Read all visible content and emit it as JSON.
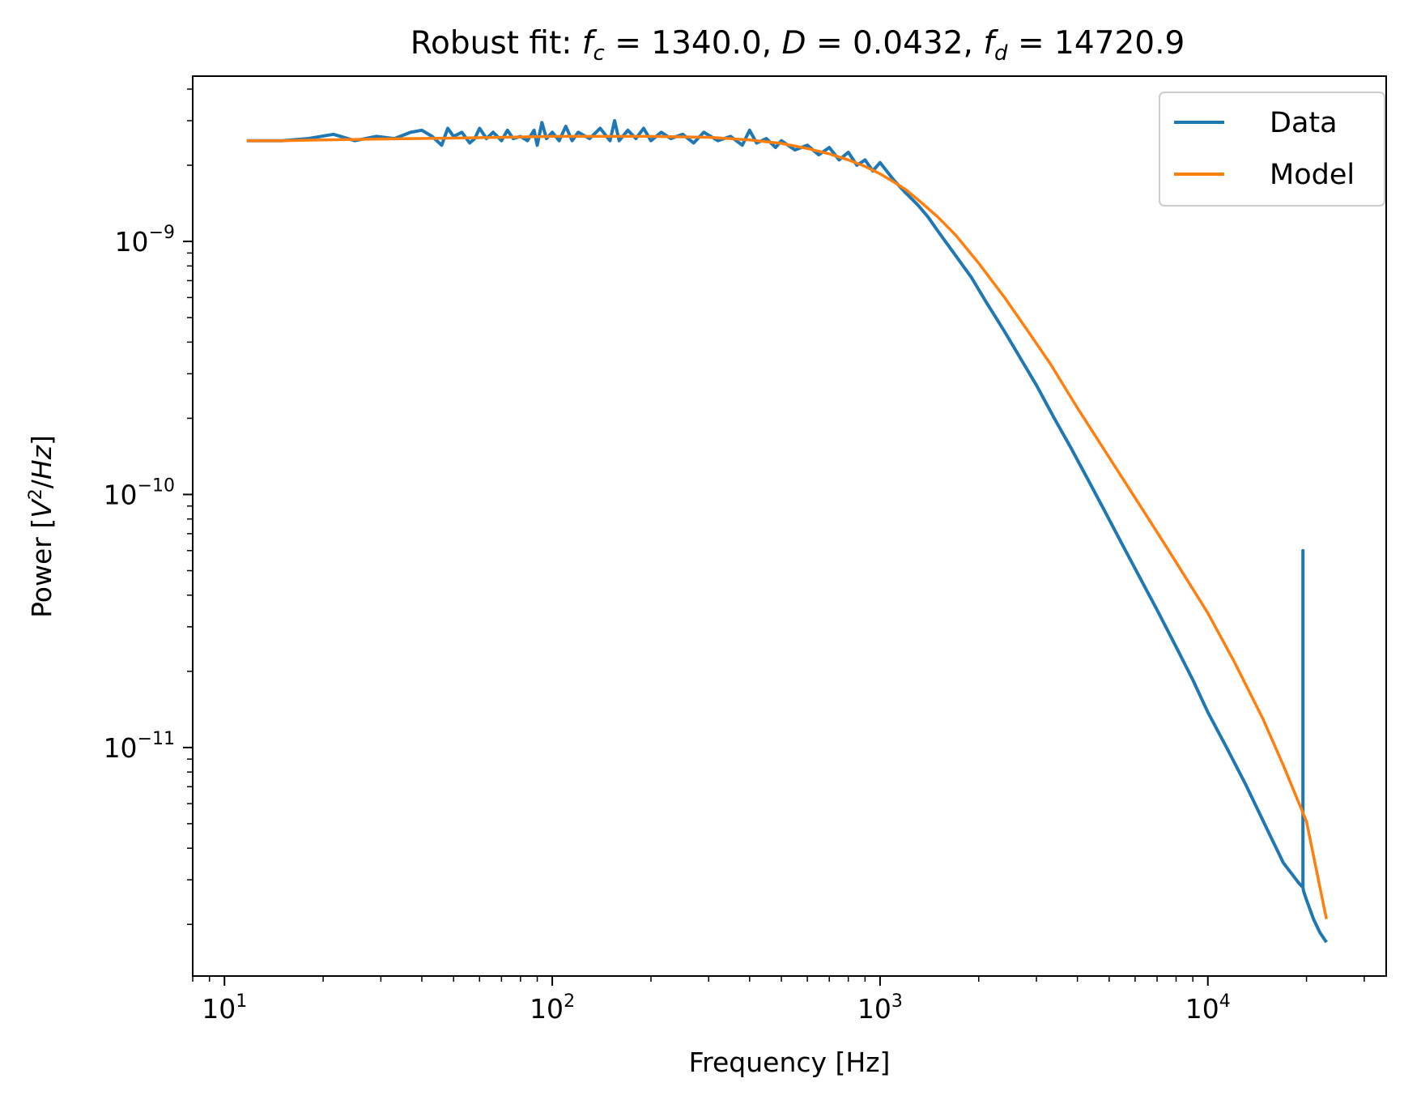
{
  "chart_data": {
    "type": "line",
    "title": {
      "prefix": "Robust fit: ",
      "fc_symbol": "f",
      "fc_sub": "c",
      "fc_value": " = 1340.0, ",
      "D_symbol": "D",
      "D_value": " = 0.0432, ",
      "fd_symbol": "f",
      "fd_sub": "d",
      "fd_value": " = 14720.9"
    },
    "xlabel": "Frequency [Hz]",
    "ylabel": {
      "prefix": "Power [",
      "V": "V",
      "exp": "2",
      "slash": "/",
      "Hz": "Hz",
      "suffix": "]"
    },
    "xscale": "log",
    "yscale": "log",
    "xlim": [
      8.0,
      35000
    ],
    "ylim": [
      1.25e-12,
      4.5e-09
    ],
    "xticks": [
      {
        "value": 10,
        "base": "10",
        "exp": "1"
      },
      {
        "value": 100,
        "base": "10",
        "exp": "2"
      },
      {
        "value": 1000,
        "base": "10",
        "exp": "3"
      },
      {
        "value": 10000,
        "base": "10",
        "exp": "4"
      }
    ],
    "yticks": [
      {
        "value": 1e-09,
        "base": "10",
        "exp": "−9"
      },
      {
        "value": 1e-10,
        "base": "10",
        "exp": "−10"
      },
      {
        "value": 1e-11,
        "base": "10",
        "exp": "−11"
      }
    ],
    "grid": false,
    "legend_position": "top-right",
    "legend": [
      {
        "label": "Data",
        "color": "#1f77b4"
      },
      {
        "label": "Model",
        "color": "#ff7f0e"
      }
    ],
    "model_params": {
      "fc": 1340.0,
      "D": 0.0432,
      "fd": 14720.9
    },
    "series": [
      {
        "name": "Data",
        "color": "#1f77b4",
        "x": [
          11.7,
          15,
          18,
          21.5,
          25,
          29,
          33,
          37,
          40,
          43,
          46,
          48,
          50,
          53,
          56,
          58,
          60,
          63,
          66,
          70,
          73,
          76,
          80,
          84,
          88,
          90,
          93,
          96,
          100,
          105,
          110,
          115,
          120,
          130,
          140,
          150,
          155,
          160,
          170,
          180,
          190,
          200,
          215,
          230,
          250,
          270,
          290,
          320,
          350,
          380,
          400,
          420,
          450,
          480,
          500,
          550,
          600,
          650,
          700,
          750,
          800,
          850,
          900,
          950,
          1000,
          1100,
          1200,
          1300,
          1400,
          1500,
          1700,
          1900,
          2100,
          2400,
          2700,
          3000,
          3400,
          3800,
          4300,
          4800,
          5500,
          6200,
          7000,
          8000,
          9000,
          10000,
          11500,
          13000,
          15000,
          17000,
          19000,
          19500,
          19500,
          19500,
          19600,
          20000,
          21000,
          22000,
          23000
        ],
        "values": [
          2.5e-09,
          2.5e-09,
          2.55e-09,
          2.65e-09,
          2.5e-09,
          2.6e-09,
          2.55e-09,
          2.7e-09,
          2.75e-09,
          2.6e-09,
          2.4e-09,
          2.8e-09,
          2.6e-09,
          2.7e-09,
          2.45e-09,
          2.55e-09,
          2.8e-09,
          2.55e-09,
          2.7e-09,
          2.5e-09,
          2.75e-09,
          2.55e-09,
          2.6e-09,
          2.5e-09,
          2.75e-09,
          2.4e-09,
          2.95e-09,
          2.55e-09,
          2.7e-09,
          2.5e-09,
          2.85e-09,
          2.5e-09,
          2.7e-09,
          2.55e-09,
          2.8e-09,
          2.5e-09,
          3e-09,
          2.5e-09,
          2.75e-09,
          2.55e-09,
          2.8e-09,
          2.5e-09,
          2.7e-09,
          2.55e-09,
          2.65e-09,
          2.45e-09,
          2.7e-09,
          2.5e-09,
          2.6e-09,
          2.4e-09,
          2.75e-09,
          2.45e-09,
          2.55e-09,
          2.35e-09,
          2.5e-09,
          2.3e-09,
          2.4e-09,
          2.2e-09,
          2.35e-09,
          2.1e-09,
          2.25e-09,
          2e-09,
          2.1e-09,
          1.9e-09,
          2.05e-09,
          1.75e-09,
          1.55e-09,
          1.4e-09,
          1.25e-09,
          1.1e-09,
          8.8e-10,
          7.2e-10,
          5.8e-10,
          4.4e-10,
          3.4e-10,
          2.7e-10,
          2e-10,
          1.55e-10,
          1.15e-10,
          8.8e-11,
          6.3e-11,
          4.7e-11,
          3.5e-11,
          2.5e-11,
          1.85e-11,
          1.38e-11,
          9.8e-12,
          7.2e-12,
          4.9e-12,
          3.5e-12,
          2.9e-12,
          2.8e-12,
          6e-11,
          2.8e-12,
          2.7e-12,
          2.5e-12,
          2.1e-12,
          1.85e-12,
          1.7e-12
        ]
      },
      {
        "name": "Model",
        "color": "#ff7f0e",
        "x": [
          11.7,
          15,
          20,
          30,
          50,
          70,
          100,
          150,
          200,
          300,
          400,
          500,
          600,
          700,
          800,
          900,
          1000,
          1100,
          1200,
          1340,
          1500,
          1700,
          2000,
          2400,
          2800,
          3300,
          4000,
          5000,
          6000,
          7000,
          8000,
          10000,
          12000,
          14720.9,
          17000,
          20000,
          23000
        ],
        "values": [
          2.5e-09,
          2.5e-09,
          2.52e-09,
          2.54e-09,
          2.56e-09,
          2.58e-09,
          2.6e-09,
          2.6e-09,
          2.6e-09,
          2.58e-09,
          2.52e-09,
          2.44e-09,
          2.33e-09,
          2.22e-09,
          2.1e-09,
          1.98e-09,
          1.85e-09,
          1.72e-09,
          1.6e-09,
          1.42e-09,
          1.25e-09,
          1.06e-09,
          8.2e-10,
          6e-10,
          4.5e-10,
          3.3e-10,
          2.2e-10,
          1.4e-10,
          9.7e-11,
          7.1e-11,
          5.4e-11,
          3.4e-11,
          2.2e-11,
          1.3e-11,
          8.5e-12,
          5.1e-12,
          2.1e-12
        ]
      }
    ]
  }
}
